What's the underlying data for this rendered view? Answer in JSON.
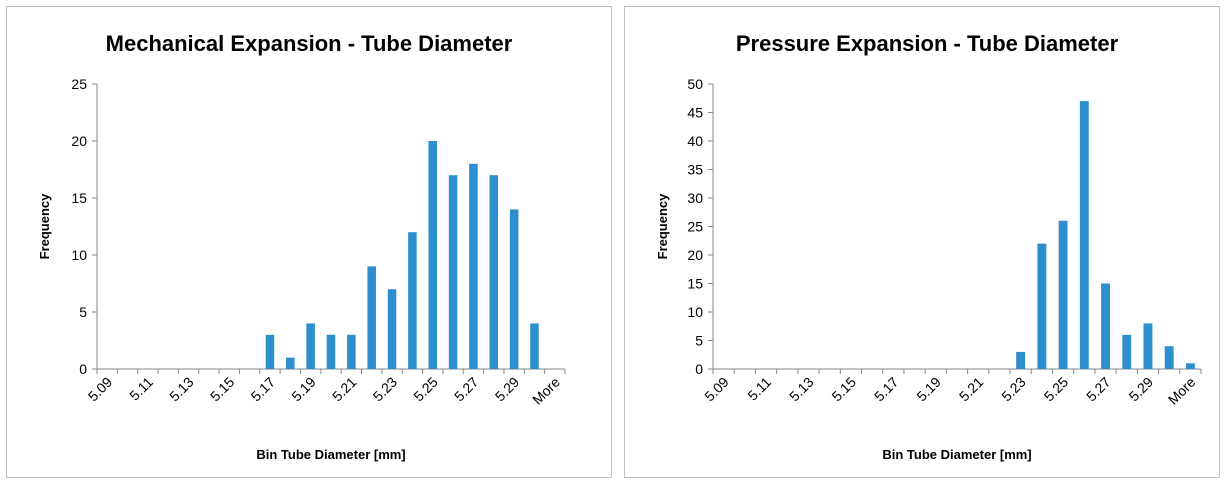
{
  "colors": {
    "bar": "#2e8fce",
    "axis": "#868686"
  },
  "chart_data": [
    {
      "type": "bar",
      "title": "Mechanical Expansion - Tube Diameter",
      "xlabel": "Bin Tube Diameter [mm]",
      "ylabel": "Frequency",
      "categories": [
        "5.09",
        "5.10",
        "5.11",
        "5.12",
        "5.13",
        "5.14",
        "5.15",
        "5.16",
        "5.17",
        "5.18",
        "5.19",
        "5.20",
        "5.21",
        "5.22",
        "5.23",
        "5.24",
        "5.25",
        "5.26",
        "5.27",
        "5.28",
        "5.29",
        "5.30",
        "More"
      ],
      "tick_labels": [
        "5.09",
        "5.11",
        "5.13",
        "5.15",
        "5.17",
        "5.19",
        "5.21",
        "5.23",
        "5.25",
        "5.27",
        "5.29",
        "More"
      ],
      "values": [
        0,
        0,
        0,
        0,
        0,
        0,
        0,
        0,
        3,
        1,
        4,
        3,
        3,
        9,
        7,
        12,
        20,
        17,
        18,
        17,
        14,
        4,
        0
      ],
      "ylim": [
        0,
        25
      ],
      "yticks": [
        0,
        5,
        10,
        15,
        20,
        25
      ],
      "grid": false,
      "legend": "none"
    },
    {
      "type": "bar",
      "title": "Pressure Expansion - Tube Diameter",
      "xlabel": "Bin Tube Diameter [mm]",
      "ylabel": "Frequency",
      "categories": [
        "5.09",
        "5.10",
        "5.11",
        "5.12",
        "5.13",
        "5.14",
        "5.15",
        "5.16",
        "5.17",
        "5.18",
        "5.19",
        "5.20",
        "5.21",
        "5.22",
        "5.23",
        "5.24",
        "5.25",
        "5.26",
        "5.27",
        "5.28",
        "5.29",
        "5.30",
        "More"
      ],
      "tick_labels": [
        "5.09",
        "5.11",
        "5.13",
        "5.15",
        "5.17",
        "5.19",
        "5.21",
        "5.23",
        "5.25",
        "5.27",
        "5.29",
        "More"
      ],
      "values": [
        0,
        0,
        0,
        0,
        0,
        0,
        0,
        0,
        0,
        0,
        0,
        0,
        0,
        0,
        3,
        22,
        26,
        47,
        15,
        6,
        8,
        4,
        1
      ],
      "ylim": [
        0,
        50
      ],
      "yticks": [
        0,
        5,
        10,
        15,
        20,
        25,
        30,
        35,
        40,
        45,
        50
      ],
      "grid": false,
      "legend": "none"
    }
  ]
}
